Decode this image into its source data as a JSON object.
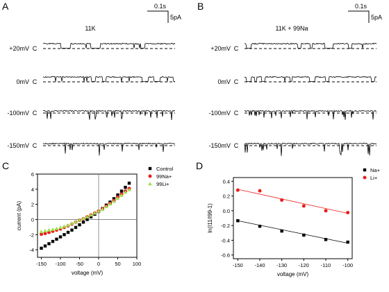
{
  "panels": {
    "A": {
      "letter": "A",
      "title": "11K",
      "scalebar_time": "0.1s",
      "scalebar_current": "5pA",
      "closed_marker": "C",
      "traces": [
        {
          "voltage": "+20mV"
        },
        {
          "voltage": "0mV"
        },
        {
          "voltage": "-100mV"
        },
        {
          "voltage": "-150mV"
        }
      ]
    },
    "B": {
      "letter": "B",
      "title": "11K + 99Na",
      "scalebar_time": "0.1s",
      "scalebar_current": "5pA",
      "closed_marker": "C",
      "traces": [
        {
          "voltage": "+20mV"
        },
        {
          "voltage": "0mV"
        },
        {
          "voltage": "-100mV"
        },
        {
          "voltage": "-150mV"
        }
      ]
    },
    "C": {
      "letter": "C"
    },
    "D": {
      "letter": "D"
    }
  },
  "chart_data": [
    {
      "type": "scatter",
      "panel": "C",
      "title": "",
      "xlabel": "voltage (mV)",
      "ylabel": "current (pA)",
      "xlim": [
        -160,
        100
      ],
      "ylim": [
        -5,
        6
      ],
      "xticks": [
        -150,
        -100,
        -50,
        0,
        50,
        100
      ],
      "yticks": [
        -4,
        -2,
        0,
        2,
        4,
        6
      ],
      "legend_position": "top-right",
      "series": [
        {
          "name": "Control",
          "marker": "square",
          "color": "#000000",
          "x": [
            -150,
            -140,
            -130,
            -120,
            -110,
            -100,
            -90,
            -80,
            -70,
            -60,
            -50,
            -40,
            -30,
            -20,
            -10,
            0,
            10,
            20,
            30,
            40,
            50,
            60,
            70,
            80
          ],
          "y": [
            -3.8,
            -3.5,
            -3.2,
            -2.9,
            -2.6,
            -2.3,
            -2.0,
            -1.7,
            -1.4,
            -1.05,
            -0.7,
            -0.35,
            0.0,
            0.35,
            0.7,
            1.05,
            1.45,
            1.9,
            2.3,
            2.75,
            3.25,
            3.75,
            4.25,
            4.8
          ]
        },
        {
          "name": "99Na+",
          "marker": "circle",
          "color": "#e8201c",
          "x": [
            -150,
            -140,
            -130,
            -120,
            -110,
            -100,
            -90,
            -80,
            -70,
            -60,
            -50,
            -40,
            -30,
            -20,
            -10,
            0,
            10,
            20,
            30,
            40,
            50,
            60,
            70,
            80
          ],
          "y": [
            -1.95,
            -1.85,
            -1.7,
            -1.55,
            -1.4,
            -1.25,
            -1.05,
            -0.85,
            -0.6,
            -0.35,
            -0.1,
            0.1,
            0.35,
            0.6,
            0.85,
            1.1,
            1.4,
            1.75,
            2.1,
            2.5,
            2.95,
            3.35,
            3.75,
            4.1
          ]
        },
        {
          "name": "99Li+",
          "marker": "triangle",
          "color": "#9be04a",
          "x": [
            -150,
            -140,
            -130,
            -120,
            -110,
            -100,
            -90,
            -80,
            -70,
            -60,
            -50,
            -40,
            -30,
            -20,
            -10,
            0,
            10,
            20,
            30,
            40,
            50,
            60,
            70,
            80
          ],
          "y": [
            -1.6,
            -1.5,
            -1.4,
            -1.3,
            -1.2,
            -1.05,
            -0.9,
            -0.75,
            -0.5,
            -0.3,
            -0.05,
            0.15,
            0.35,
            0.6,
            0.85,
            1.1,
            1.35,
            1.7,
            2.05,
            2.4,
            2.8,
            3.2,
            3.6,
            3.95
          ]
        }
      ]
    },
    {
      "type": "scatter",
      "panel": "D",
      "title": "",
      "xlabel": "voltage (mV)",
      "ylabel": "ln(I11/I99-1)",
      "xlim": [
        -152,
        -98
      ],
      "ylim": [
        -0.65,
        0.45
      ],
      "xticks": [
        -150,
        -140,
        -130,
        -120,
        -110,
        -100
      ],
      "yticks": [
        -0.6,
        -0.4,
        -0.2,
        0.0,
        0.2,
        0.4
      ],
      "ytick_labels": [
        "-0.6",
        "-0.4",
        "-0.2",
        "0.0",
        "0.2",
        "0.4"
      ],
      "legend_position": "top-right",
      "series": [
        {
          "name": "Na+",
          "marker": "square",
          "color": "#000000",
          "x": [
            -150,
            -140,
            -130,
            -120,
            -110,
            -100
          ],
          "y": [
            -0.135,
            -0.21,
            -0.275,
            -0.33,
            -0.39,
            -0.425
          ],
          "fit": [
            [
              -150,
              -0.135
            ],
            [
              -100,
              -0.44
            ]
          ]
        },
        {
          "name": "Li+",
          "marker": "circle",
          "color": "#e8201c",
          "x": [
            -150,
            -140,
            -130,
            -120,
            -110,
            -100
          ],
          "y": [
            0.28,
            0.27,
            0.145,
            0.065,
            0.0,
            -0.025
          ],
          "fit": [
            [
              -150,
              0.29
            ],
            [
              -100,
              -0.035
            ]
          ]
        }
      ]
    }
  ]
}
